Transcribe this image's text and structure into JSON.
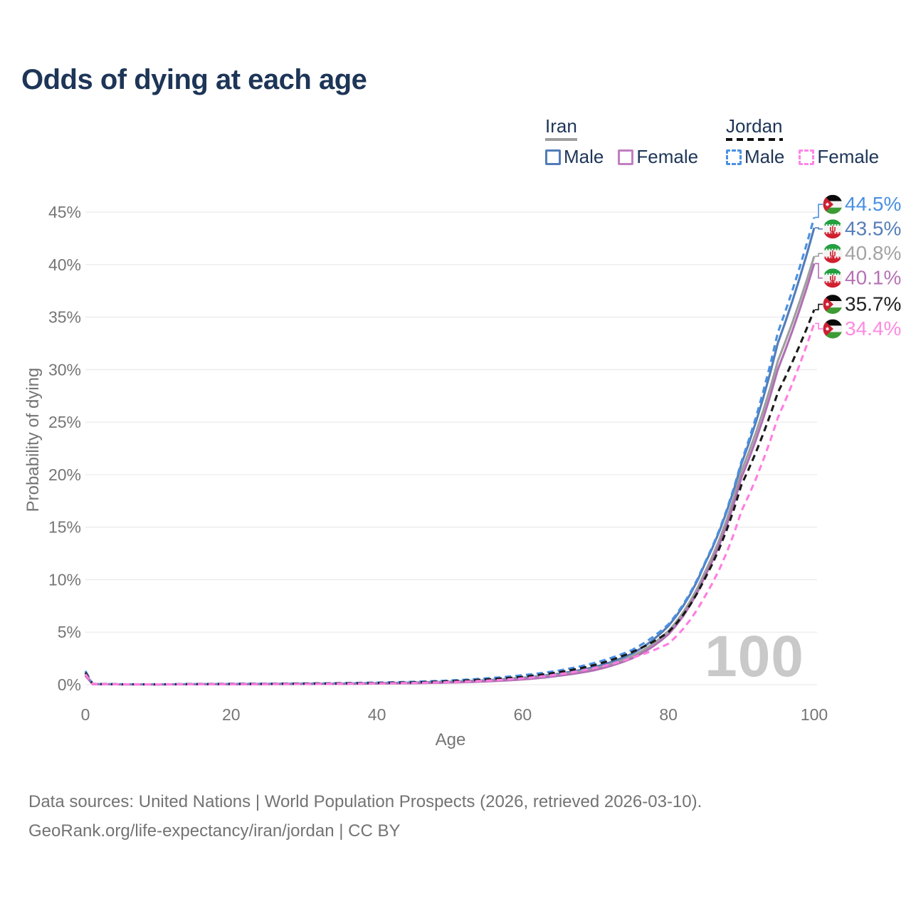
{
  "header": {
    "title": "Odds of dying at each age",
    "title_color": "#1d3557"
  },
  "legend": {
    "groups": [
      {
        "label": "Iran",
        "underline_style": "solid",
        "underline_color": "#9e9e9e",
        "items": [
          {
            "label": "Male",
            "box_color": "#527cb8",
            "box_style": "solid"
          },
          {
            "label": "Female",
            "box_color": "#c17fc0",
            "box_style": "solid"
          }
        ]
      },
      {
        "label": "Jordan",
        "underline_style": "dashed",
        "underline_color": "#111111",
        "items": [
          {
            "label": "Male",
            "box_color": "#4a90e2",
            "box_style": "dashed"
          },
          {
            "label": "Female",
            "box_color": "#ff85e8",
            "box_style": "dashed"
          }
        ]
      }
    ]
  },
  "chart_data": {
    "type": "line",
    "title": "Odds of dying at each age",
    "xlabel": "Age",
    "ylabel": "Probability of dying",
    "watermark": "100",
    "x_ticks": [
      0,
      20,
      40,
      60,
      80,
      100
    ],
    "y_ticks_pct": [
      0,
      5,
      10,
      15,
      20,
      25,
      30,
      35,
      40,
      45
    ],
    "xlim": [
      0,
      100
    ],
    "ylim_pct": [
      0,
      45
    ],
    "grid": true,
    "axis_text_color": "#757575",
    "gridline_color": "#ebebeb",
    "ages": [
      0,
      1,
      5,
      10,
      15,
      20,
      25,
      30,
      35,
      40,
      45,
      50,
      55,
      60,
      65,
      70,
      75,
      80,
      85,
      90,
      95,
      100
    ],
    "series": [
      {
        "id": "iran_male",
        "name": "Iran — Male",
        "country": "iran",
        "sex": "Male",
        "color": "#527cb8",
        "dashed": false,
        "end_label": "43.5%",
        "end_label_color": "#567eb9",
        "end_value_pct": 43.5,
        "values_pct": [
          1.05,
          0.06,
          0.035,
          0.03,
          0.05,
          0.07,
          0.08,
          0.09,
          0.11,
          0.15,
          0.2,
          0.28,
          0.42,
          0.65,
          1.05,
          1.7,
          2.95,
          5.6,
          11.5,
          21.0,
          32.5,
          43.5
        ]
      },
      {
        "id": "iran_total",
        "name": "Iran — Both sexes",
        "country": "iran",
        "sex": "Both",
        "color": "#9e9e9e",
        "dashed": false,
        "end_label": "40.8%",
        "end_label_color": "#a3a3a3",
        "end_value_pct": 40.8,
        "values_pct": [
          0.95,
          0.055,
          0.03,
          0.027,
          0.04,
          0.055,
          0.065,
          0.075,
          0.09,
          0.12,
          0.17,
          0.24,
          0.36,
          0.58,
          0.95,
          1.55,
          2.7,
          5.1,
          10.7,
          20.3,
          30.8,
          40.8
        ]
      },
      {
        "id": "iran_female",
        "name": "Iran — Female",
        "country": "iran",
        "sex": "Female",
        "color": "#b06fb3",
        "dashed": false,
        "end_label": "40.1%",
        "end_label_color": "#b573b5",
        "end_value_pct": 40.1,
        "values_pct": [
          0.85,
          0.05,
          0.028,
          0.024,
          0.033,
          0.04,
          0.05,
          0.06,
          0.075,
          0.1,
          0.14,
          0.2,
          0.31,
          0.5,
          0.85,
          1.4,
          2.5,
          4.8,
          10.3,
          19.7,
          30.0,
          40.1
        ]
      },
      {
        "id": "jordan_male",
        "name": "Jordan — Male",
        "country": "jordan",
        "sex": "Male",
        "color": "#4a90e2",
        "dashed": true,
        "end_label": "44.5%",
        "end_label_color": "#4a90e2",
        "end_value_pct": 44.5,
        "values_pct": [
          1.3,
          0.07,
          0.04,
          0.035,
          0.06,
          0.09,
          0.1,
          0.12,
          0.15,
          0.2,
          0.28,
          0.4,
          0.6,
          0.9,
          1.35,
          2.1,
          3.3,
          5.75,
          11.6,
          21.2,
          33.5,
          44.5
        ]
      },
      {
        "id": "jordan_total",
        "name": "Jordan — Both sexes",
        "country": "jordan",
        "sex": "Both",
        "color": "#1a1a1a",
        "dashed": true,
        "end_label": "35.7%",
        "end_label_color": "#222222",
        "end_value_pct": 35.7,
        "values_pct": [
          1.15,
          0.06,
          0.035,
          0.03,
          0.05,
          0.07,
          0.08,
          0.1,
          0.12,
          0.16,
          0.22,
          0.33,
          0.5,
          0.75,
          1.2,
          1.9,
          3.1,
          5.0,
          10.1,
          19.0,
          27.8,
          35.7
        ]
      },
      {
        "id": "jordan_female",
        "name": "Jordan — Female",
        "country": "jordan",
        "sex": "Female",
        "color": "#ff7de1",
        "dashed": true,
        "end_label": "34.4%",
        "end_label_color": "#ff8ae0",
        "end_value_pct": 34.4,
        "values_pct": [
          1.0,
          0.055,
          0.03,
          0.026,
          0.04,
          0.05,
          0.06,
          0.07,
          0.09,
          0.12,
          0.17,
          0.25,
          0.38,
          0.6,
          1.0,
          1.6,
          2.55,
          3.9,
          8.4,
          16.5,
          25.4,
          34.4
        ]
      }
    ],
    "flag_colors": {
      "iran_green": "#239f40",
      "iran_red": "#d0202f",
      "jordan_black": "#0a0a0a",
      "jordan_green": "#3d9b35",
      "jordan_red": "#ce2033"
    }
  },
  "footer": {
    "line1": "Data sources: United Nations | World Population Prospects (2026, retrieved 2026-03-10).",
    "line2": "GeoRank.org/life-expectancy/iran/jordan | CC BY"
  }
}
